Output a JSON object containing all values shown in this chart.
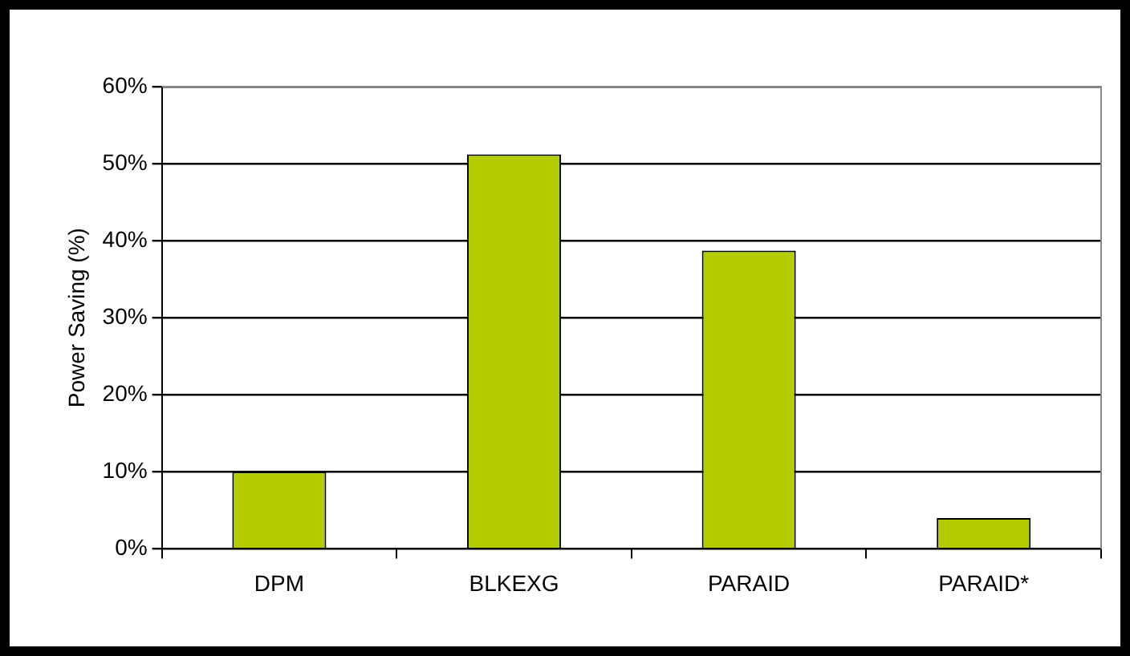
{
  "chart_data": {
    "type": "bar",
    "ylabel": "Power Saving (%)",
    "categories": [
      "DPM",
      "BLKEXG",
      "PARAID",
      "PARAID*"
    ],
    "values": [
      10,
      51.2,
      38.7,
      4
    ],
    "color": "#b2cc00",
    "ylim": [
      0,
      60
    ],
    "yticks": [
      {
        "value": 0,
        "label": "0%"
      },
      {
        "value": 10,
        "label": "10%"
      },
      {
        "value": 20,
        "label": "20%"
      },
      {
        "value": 30,
        "label": "30%"
      },
      {
        "value": 40,
        "label": "40%"
      },
      {
        "value": 50,
        "label": "50%"
      },
      {
        "value": 60,
        "label": "60%"
      }
    ],
    "grid": "y",
    "legend": false
  }
}
